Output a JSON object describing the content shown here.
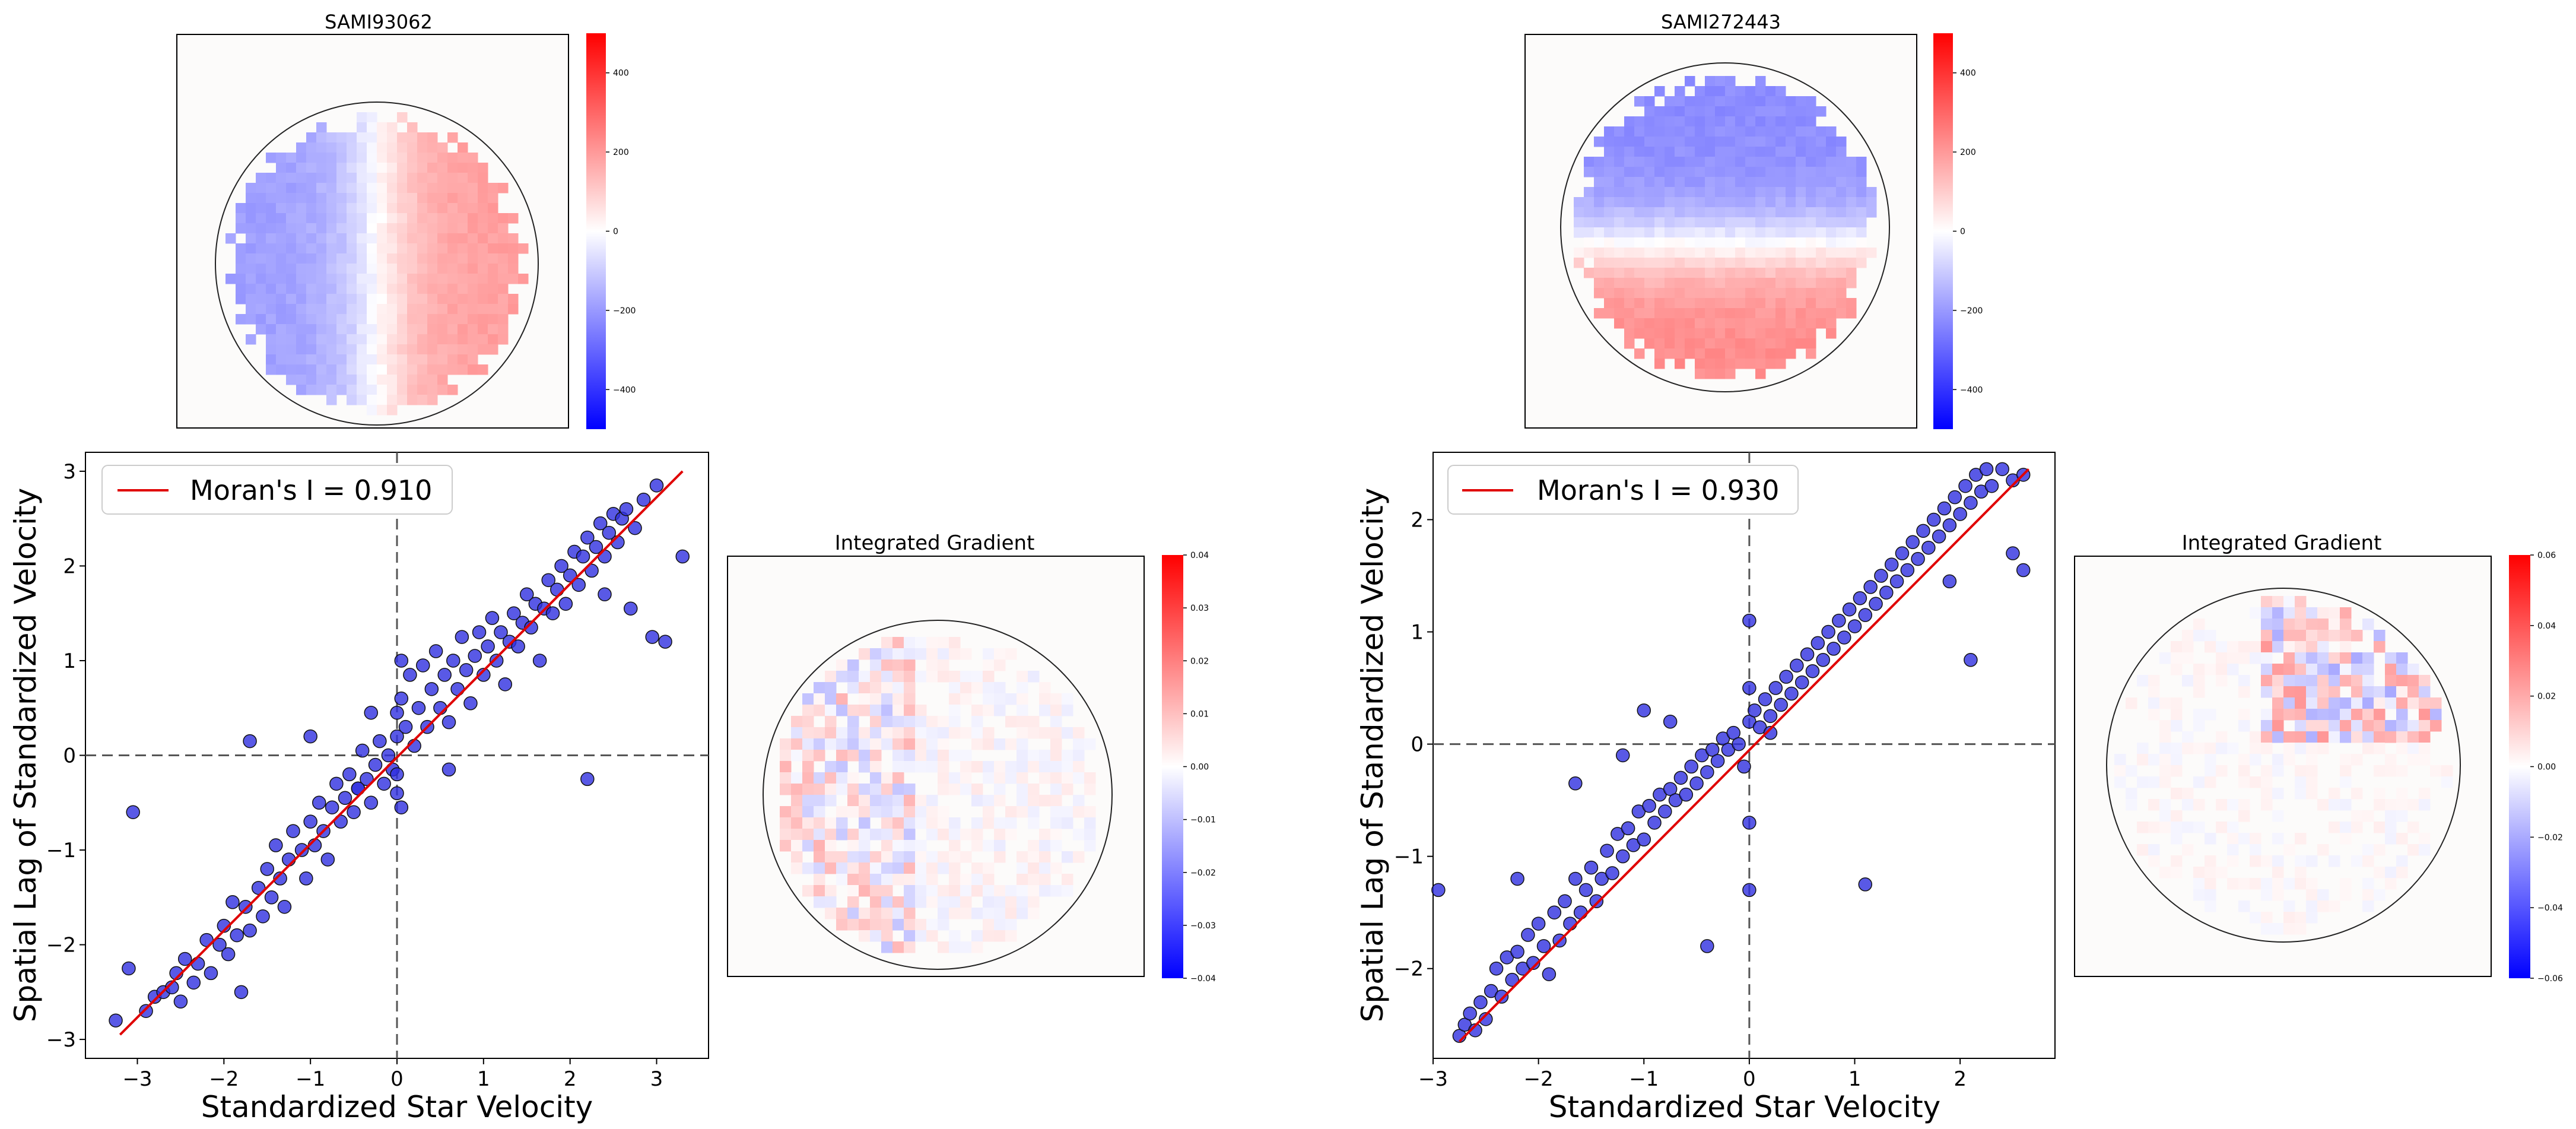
{
  "chart_data": [
    {
      "type": "heatmap",
      "title": "SAMI93062",
      "description_pattern": "rotation-left-blue-right-red",
      "colorbar": {
        "ticks": [
          400,
          200,
          0,
          -200,
          -400
        ],
        "tick_labels": [
          "400",
          "200",
          "0",
          "−200",
          "−400"
        ],
        "range": [
          -500,
          500
        ]
      }
    },
    {
      "type": "scatter",
      "xlabel": "Standardized Star Velocity",
      "ylabel": "Spatial Lag of Standardized Velocity",
      "xlim": [
        -3.6,
        3.6
      ],
      "ylim": [
        -3.2,
        3.2
      ],
      "xticks": [
        -3,
        -2,
        -1,
        0,
        1,
        2,
        3
      ],
      "yticks": [
        -3,
        -2,
        -1,
        0,
        1,
        2,
        3
      ],
      "tick_labels_x": [
        "−3",
        "−2",
        "−1",
        "0",
        "1",
        "2",
        "3"
      ],
      "tick_labels_y": [
        "−3",
        "−2",
        "−1",
        "0",
        "1",
        "2",
        "3"
      ],
      "legend": "Moran's I = 0.910",
      "legend_location": "top-left",
      "fit_line": {
        "x": [
          -3.2,
          3.3
        ],
        "y": [
          -2.95,
          3.0
        ]
      },
      "points": [
        [
          -3.25,
          -2.8
        ],
        [
          -3.1,
          -2.25
        ],
        [
          -3.05,
          -0.6
        ],
        [
          -2.9,
          -2.7
        ],
        [
          -2.8,
          -2.55
        ],
        [
          -2.7,
          -2.5
        ],
        [
          -2.6,
          -2.45
        ],
        [
          -2.55,
          -2.3
        ],
        [
          -2.5,
          -2.6
        ],
        [
          -2.45,
          -2.15
        ],
        [
          -2.35,
          -2.4
        ],
        [
          -2.3,
          -2.2
        ],
        [
          -2.2,
          -1.95
        ],
        [
          -2.15,
          -2.3
        ],
        [
          -2.05,
          -2.0
        ],
        [
          -2.0,
          -1.8
        ],
        [
          -1.95,
          -2.1
        ],
        [
          -1.9,
          -1.55
        ],
        [
          -1.85,
          -1.9
        ],
        [
          -1.8,
          -2.5
        ],
        [
          -1.75,
          -1.6
        ],
        [
          -1.7,
          -1.85
        ],
        [
          -1.6,
          -1.4
        ],
        [
          -1.55,
          -1.7
        ],
        [
          -1.5,
          -1.2
        ],
        [
          -1.45,
          -1.5
        ],
        [
          -1.4,
          -0.95
        ],
        [
          -1.35,
          -1.3
        ],
        [
          -1.3,
          -1.6
        ],
        [
          -1.25,
          -1.1
        ],
        [
          -1.2,
          -0.8
        ],
        [
          -1.1,
          -1.0
        ],
        [
          -1.05,
          -1.3
        ],
        [
          -1.0,
          -0.7
        ],
        [
          -0.95,
          -0.95
        ],
        [
          -0.9,
          -0.5
        ],
        [
          -0.85,
          -0.8
        ],
        [
          -0.8,
          -1.1
        ],
        [
          -0.75,
          -0.55
        ],
        [
          -0.7,
          -0.3
        ],
        [
          -0.65,
          -0.7
        ],
        [
          -0.6,
          -0.45
        ],
        [
          -0.55,
          -0.2
        ],
        [
          -0.5,
          -0.6
        ],
        [
          -0.45,
          -0.35
        ],
        [
          -0.4,
          0.05
        ],
        [
          -0.35,
          -0.25
        ],
        [
          -0.3,
          -0.5
        ],
        [
          -0.25,
          -0.1
        ],
        [
          -0.2,
          0.15
        ],
        [
          -0.15,
          -0.3
        ],
        [
          -0.1,
          0.0
        ],
        [
          -0.05,
          -0.15
        ],
        [
          0.0,
          -0.4
        ],
        [
          0.0,
          -0.2
        ],
        [
          0.0,
          0.2
        ],
        [
          0.0,
          0.45
        ],
        [
          0.05,
          0.6
        ],
        [
          0.05,
          1.0
        ],
        [
          0.05,
          -0.55
        ],
        [
          0.1,
          0.3
        ],
        [
          0.15,
          0.85
        ],
        [
          0.2,
          0.1
        ],
        [
          0.25,
          0.5
        ],
        [
          0.3,
          0.95
        ],
        [
          0.35,
          0.3
        ],
        [
          0.4,
          0.7
        ],
        [
          0.45,
          1.1
        ],
        [
          0.5,
          0.5
        ],
        [
          0.55,
          0.85
        ],
        [
          0.6,
          0.35
        ],
        [
          0.65,
          1.0
        ],
        [
          0.7,
          0.7
        ],
        [
          0.75,
          1.25
        ],
        [
          0.8,
          0.9
        ],
        [
          0.85,
          0.55
        ],
        [
          0.9,
          1.05
        ],
        [
          0.95,
          1.3
        ],
        [
          1.0,
          0.85
        ],
        [
          1.05,
          1.15
        ],
        [
          1.1,
          1.45
        ],
        [
          1.15,
          1.0
        ],
        [
          1.2,
          1.3
        ],
        [
          1.25,
          0.75
        ],
        [
          1.3,
          1.2
        ],
        [
          1.35,
          1.5
        ],
        [
          1.4,
          1.15
        ],
        [
          1.45,
          1.4
        ],
        [
          1.5,
          1.7
        ],
        [
          1.55,
          1.35
        ],
        [
          1.6,
          1.6
        ],
        [
          1.65,
          1.0
        ],
        [
          1.7,
          1.55
        ],
        [
          1.75,
          1.85
        ],
        [
          1.8,
          1.5
        ],
        [
          1.85,
          1.75
        ],
        [
          1.9,
          2.0
        ],
        [
          1.95,
          1.6
        ],
        [
          2.0,
          1.9
        ],
        [
          2.05,
          2.15
        ],
        [
          2.1,
          1.8
        ],
        [
          2.15,
          2.1
        ],
        [
          2.2,
          2.3
        ],
        [
          2.25,
          1.95
        ],
        [
          2.3,
          2.2
        ],
        [
          2.35,
          2.45
        ],
        [
          2.4,
          2.1
        ],
        [
          2.45,
          2.35
        ],
        [
          2.5,
          2.55
        ],
        [
          2.55,
          2.25
        ],
        [
          2.6,
          2.5
        ],
        [
          2.65,
          2.6
        ],
        [
          2.75,
          2.4
        ],
        [
          2.85,
          2.7
        ],
        [
          3.0,
          2.85
        ],
        [
          3.1,
          1.2
        ],
        [
          2.95,
          1.25
        ],
        [
          3.3,
          2.1
        ],
        [
          2.2,
          -0.25
        ],
        [
          -1.0,
          0.2
        ],
        [
          -0.45,
          -0.35
        ],
        [
          -1.7,
          0.15
        ],
        [
          2.7,
          1.55
        ],
        [
          -0.3,
          0.45
        ],
        [
          0.6,
          -0.15
        ],
        [
          2.4,
          1.7
        ]
      ],
      "point_color": "#2f2fe0"
    },
    {
      "type": "heatmap",
      "title": "Integrated Gradient",
      "description_pattern": "attribution-left-side",
      "colorbar": {
        "ticks": [
          0.04,
          0.03,
          0.02,
          0.01,
          0.0,
          -0.01,
          -0.02,
          -0.03,
          -0.04
        ],
        "tick_labels": [
          "0.04",
          "0.03",
          "0.02",
          "0.01",
          "0.00",
          "−0.01",
          "−0.02",
          "−0.03",
          "−0.04"
        ],
        "range": [
          -0.04,
          0.04
        ]
      }
    },
    {
      "type": "heatmap",
      "title": "SAMI272443",
      "description_pattern": "rotation-top-blue-bottom-red",
      "colorbar": {
        "ticks": [
          400,
          200,
          0,
          -200,
          -400
        ],
        "tick_labels": [
          "400",
          "200",
          "0",
          "−200",
          "−400"
        ],
        "range": [
          -500,
          500
        ]
      }
    },
    {
      "type": "scatter",
      "xlabel": "Standardized Star Velocity",
      "ylabel": "Spatial Lag of Standardized Velocity",
      "xlim": [
        -3.0,
        2.9
      ],
      "ylim": [
        -2.8,
        2.6
      ],
      "xticks": [
        -3,
        -2,
        -1,
        0,
        1,
        2
      ],
      "yticks": [
        -2,
        -1,
        0,
        1,
        2
      ],
      "tick_labels_x": [
        "−3",
        "−2",
        "−1",
        "0",
        "1",
        "2"
      ],
      "tick_labels_y": [
        "−2",
        "−1",
        "0",
        "1",
        "2"
      ],
      "legend": "Moran's I = 0.930",
      "legend_location": "top-left",
      "fit_line": {
        "x": [
          -2.75,
          2.65
        ],
        "y": [
          -2.65,
          2.45
        ]
      },
      "points": [
        [
          -2.75,
          -2.6
        ],
        [
          -2.7,
          -2.5
        ],
        [
          -2.65,
          -2.4
        ],
        [
          -2.6,
          -2.55
        ],
        [
          -2.55,
          -2.3
        ],
        [
          -2.5,
          -2.45
        ],
        [
          -2.45,
          -2.2
        ],
        [
          -2.4,
          -2.0
        ],
        [
          -2.35,
          -2.25
        ],
        [
          -2.3,
          -1.9
        ],
        [
          -2.25,
          -2.1
        ],
        [
          -2.2,
          -1.85
        ],
        [
          -2.15,
          -2.0
        ],
        [
          -2.1,
          -1.7
        ],
        [
          -2.05,
          -1.95
        ],
        [
          -2.0,
          -1.6
        ],
        [
          -1.95,
          -1.8
        ],
        [
          -1.9,
          -2.05
        ],
        [
          -1.85,
          -1.5
        ],
        [
          -1.8,
          -1.75
        ],
        [
          -1.75,
          -1.4
        ],
        [
          -1.7,
          -1.6
        ],
        [
          -1.65,
          -1.2
        ],
        [
          -1.6,
          -1.5
        ],
        [
          -1.55,
          -1.3
        ],
        [
          -1.5,
          -1.1
        ],
        [
          -1.45,
          -1.4
        ],
        [
          -1.4,
          -1.2
        ],
        [
          -1.35,
          -0.95
        ],
        [
          -1.3,
          -1.15
        ],
        [
          -1.25,
          -0.8
        ],
        [
          -1.2,
          -1.0
        ],
        [
          -1.15,
          -0.75
        ],
        [
          -1.1,
          -0.9
        ],
        [
          -1.05,
          -0.6
        ],
        [
          -1.0,
          -0.85
        ],
        [
          -0.95,
          -0.55
        ],
        [
          -0.9,
          -0.7
        ],
        [
          -0.85,
          -0.45
        ],
        [
          -0.8,
          -0.6
        ],
        [
          -0.75,
          -0.4
        ],
        [
          -0.7,
          -0.5
        ],
        [
          -0.65,
          -0.3
        ],
        [
          -0.6,
          -0.45
        ],
        [
          -0.55,
          -0.2
        ],
        [
          -0.5,
          -0.35
        ],
        [
          -0.45,
          -0.1
        ],
        [
          -0.4,
          -0.25
        ],
        [
          -0.35,
          -0.05
        ],
        [
          -0.3,
          -0.15
        ],
        [
          -0.25,
          0.05
        ],
        [
          -0.2,
          -0.05
        ],
        [
          -0.15,
          0.1
        ],
        [
          -0.1,
          0.0
        ],
        [
          -0.05,
          -0.2
        ],
        [
          0.0,
          0.2
        ],
        [
          0.0,
          0.5
        ],
        [
          0.0,
          1.1
        ],
        [
          0.0,
          -0.7
        ],
        [
          0.0,
          -1.3
        ],
        [
          0.05,
          0.3
        ],
        [
          0.1,
          0.15
        ],
        [
          0.15,
          0.4
        ],
        [
          0.2,
          0.25
        ],
        [
          0.25,
          0.5
        ],
        [
          0.3,
          0.35
        ],
        [
          0.35,
          0.6
        ],
        [
          0.4,
          0.45
        ],
        [
          0.45,
          0.7
        ],
        [
          0.5,
          0.55
        ],
        [
          0.55,
          0.8
        ],
        [
          0.6,
          0.65
        ],
        [
          0.65,
          0.9
        ],
        [
          0.7,
          0.75
        ],
        [
          0.75,
          1.0
        ],
        [
          0.8,
          0.85
        ],
        [
          0.85,
          1.1
        ],
        [
          0.9,
          0.95
        ],
        [
          0.95,
          1.2
        ],
        [
          1.0,
          1.05
        ],
        [
          1.05,
          1.3
        ],
        [
          1.1,
          1.15
        ],
        [
          1.15,
          1.4
        ],
        [
          1.2,
          1.25
        ],
        [
          1.25,
          1.5
        ],
        [
          1.3,
          1.35
        ],
        [
          1.35,
          1.6
        ],
        [
          1.4,
          1.45
        ],
        [
          1.45,
          1.7
        ],
        [
          1.5,
          1.55
        ],
        [
          1.55,
          1.8
        ],
        [
          1.6,
          1.65
        ],
        [
          1.65,
          1.9
        ],
        [
          1.7,
          1.75
        ],
        [
          1.75,
          2.0
        ],
        [
          1.8,
          1.85
        ],
        [
          1.85,
          2.1
        ],
        [
          1.9,
          1.95
        ],
        [
          1.95,
          2.2
        ],
        [
          2.0,
          2.05
        ],
        [
          2.05,
          2.3
        ],
        [
          2.1,
          2.15
        ],
        [
          2.15,
          2.4
        ],
        [
          2.2,
          2.25
        ],
        [
          2.25,
          2.45
        ],
        [
          2.3,
          2.3
        ],
        [
          2.4,
          2.45
        ],
        [
          2.5,
          2.35
        ],
        [
          2.6,
          1.55
        ],
        [
          2.5,
          1.7
        ],
        [
          2.1,
          0.75
        ],
        [
          2.6,
          2.4
        ],
        [
          1.1,
          -1.25
        ],
        [
          -0.4,
          -1.8
        ],
        [
          -0.75,
          0.2
        ],
        [
          -1.0,
          0.3
        ],
        [
          -2.95,
          -1.3
        ],
        [
          -1.65,
          -0.35
        ],
        [
          1.9,
          1.45
        ],
        [
          -1.2,
          -0.1
        ],
        [
          0.2,
          0.1
        ],
        [
          -2.2,
          -1.2
        ]
      ],
      "point_color": "#2f2fe0"
    },
    {
      "type": "heatmap",
      "title": "Integrated Gradient",
      "description_pattern": "attribution-upper-right",
      "colorbar": {
        "ticks": [
          0.06,
          0.04,
          0.02,
          0.0,
          -0.02,
          -0.04,
          -0.06
        ],
        "tick_labels": [
          "0.06",
          "0.04",
          "0.02",
          "0.00",
          "−0.02",
          "−0.04",
          "−0.06"
        ],
        "range": [
          -0.06,
          0.06
        ]
      }
    }
  ]
}
